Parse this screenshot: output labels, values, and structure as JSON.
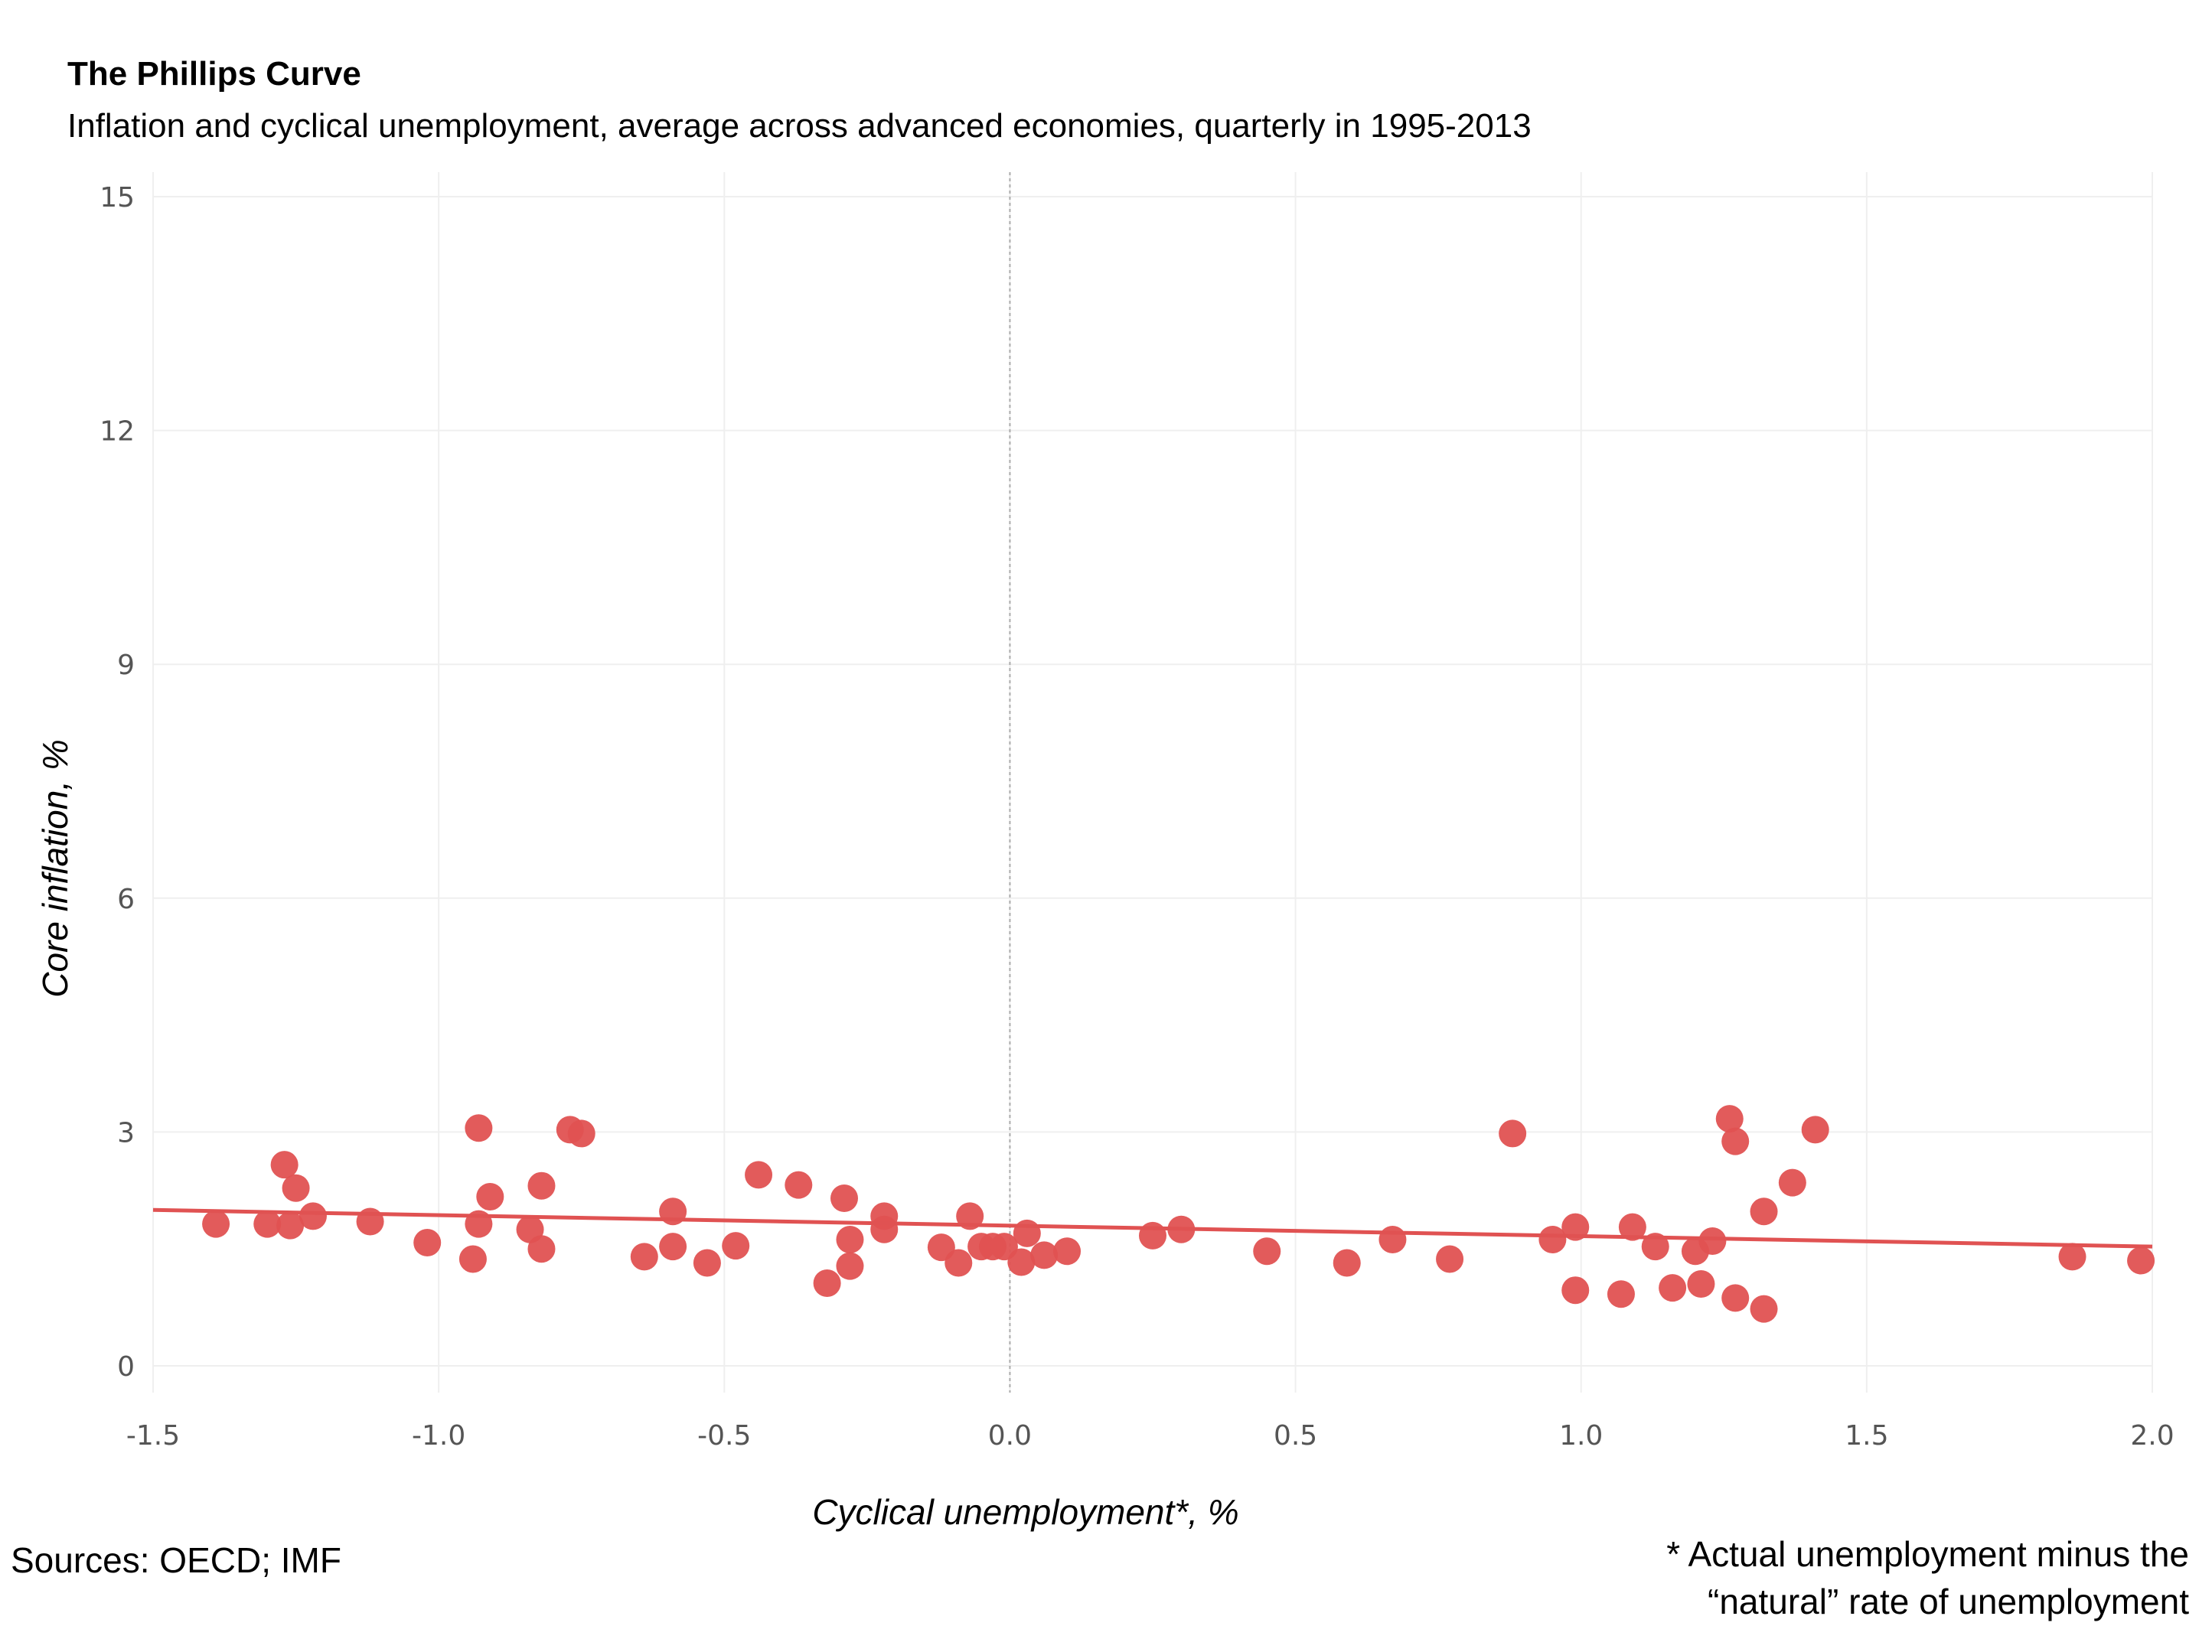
{
  "chart_data": {
    "type": "scatter",
    "title": "The Phillips Curve",
    "subtitle": "Inflation and cyclical unemployment, average across advanced economies, quarterly in 1995-2013",
    "xlabel": "Cyclical unemployment*, %",
    "ylabel": "Core inflation, %",
    "xlim": [
      -1.5,
      2.0
    ],
    "ylim": [
      0,
      15
    ],
    "xticks": [
      "-1.5",
      "-1.0",
      "-0.5",
      "0.0",
      "0.5",
      "1.0",
      "1.5",
      "2.0"
    ],
    "xtick_values": [
      -1.5,
      -1.0,
      -0.5,
      0.0,
      0.5,
      1.0,
      1.5,
      2.0
    ],
    "yticks": [
      "0",
      "3",
      "6",
      "9",
      "12",
      "15"
    ],
    "ytick_values": [
      0,
      3,
      6,
      9,
      12,
      15
    ],
    "grid": true,
    "reference_line_x": 0.0,
    "point_color": "#e05252",
    "trend_color": "#e05252",
    "trend_line": {
      "x": [
        -1.5,
        2.0
      ],
      "y": [
        2.0,
        1.53
      ]
    },
    "points": [
      {
        "x": -1.39,
        "y": 1.82
      },
      {
        "x": -1.3,
        "y": 1.82
      },
      {
        "x": -1.27,
        "y": 2.58
      },
      {
        "x": -1.26,
        "y": 1.8
      },
      {
        "x": -1.25,
        "y": 2.28
      },
      {
        "x": -1.22,
        "y": 1.92
      },
      {
        "x": -1.12,
        "y": 1.85
      },
      {
        "x": -1.02,
        "y": 1.58
      },
      {
        "x": -0.94,
        "y": 1.37
      },
      {
        "x": -0.93,
        "y": 3.05
      },
      {
        "x": -0.93,
        "y": 1.82
      },
      {
        "x": -0.91,
        "y": 2.17
      },
      {
        "x": -0.84,
        "y": 1.75
      },
      {
        "x": -0.82,
        "y": 2.31
      },
      {
        "x": -0.82,
        "y": 1.5
      },
      {
        "x": -0.77,
        "y": 3.03
      },
      {
        "x": -0.75,
        "y": 2.98
      },
      {
        "x": -0.64,
        "y": 1.4
      },
      {
        "x": -0.59,
        "y": 1.98
      },
      {
        "x": -0.59,
        "y": 1.53
      },
      {
        "x": -0.53,
        "y": 1.32
      },
      {
        "x": -0.48,
        "y": 1.54
      },
      {
        "x": -0.44,
        "y": 2.45
      },
      {
        "x": -0.37,
        "y": 2.32
      },
      {
        "x": -0.32,
        "y": 1.06
      },
      {
        "x": -0.29,
        "y": 2.15
      },
      {
        "x": -0.28,
        "y": 1.62
      },
      {
        "x": -0.28,
        "y": 1.28
      },
      {
        "x": -0.22,
        "y": 1.92
      },
      {
        "x": -0.22,
        "y": 1.75
      },
      {
        "x": -0.12,
        "y": 1.52
      },
      {
        "x": -0.09,
        "y": 1.32
      },
      {
        "x": -0.07,
        "y": 1.92
      },
      {
        "x": -0.05,
        "y": 1.53
      },
      {
        "x": -0.03,
        "y": 1.53
      },
      {
        "x": -0.01,
        "y": 1.53
      },
      {
        "x": 0.02,
        "y": 1.33
      },
      {
        "x": 0.03,
        "y": 1.7
      },
      {
        "x": 0.06,
        "y": 1.42
      },
      {
        "x": 0.1,
        "y": 1.47
      },
      {
        "x": 0.25,
        "y": 1.67
      },
      {
        "x": 0.3,
        "y": 1.75
      },
      {
        "x": 0.45,
        "y": 1.47
      },
      {
        "x": 0.59,
        "y": 1.32
      },
      {
        "x": 0.67,
        "y": 1.62
      },
      {
        "x": 0.77,
        "y": 1.37
      },
      {
        "x": 0.88,
        "y": 2.98
      },
      {
        "x": 0.95,
        "y": 1.62
      },
      {
        "x": 0.99,
        "y": 1.78
      },
      {
        "x": 0.99,
        "y": 0.97
      },
      {
        "x": 1.07,
        "y": 0.92
      },
      {
        "x": 1.09,
        "y": 1.78
      },
      {
        "x": 1.13,
        "y": 1.53
      },
      {
        "x": 1.16,
        "y": 1.0
      },
      {
        "x": 1.2,
        "y": 1.47
      },
      {
        "x": 1.21,
        "y": 1.05
      },
      {
        "x": 1.23,
        "y": 1.6
      },
      {
        "x": 1.26,
        "y": 3.17
      },
      {
        "x": 1.27,
        "y": 2.88
      },
      {
        "x": 1.27,
        "y": 0.87
      },
      {
        "x": 1.32,
        "y": 0.73
      },
      {
        "x": 1.32,
        "y": 1.98
      },
      {
        "x": 1.37,
        "y": 2.35
      },
      {
        "x": 1.41,
        "y": 3.03
      },
      {
        "x": 1.86,
        "y": 1.4
      },
      {
        "x": 1.98,
        "y": 1.35
      }
    ]
  },
  "notes": {
    "source": "Sources: OECD; IMF",
    "footnote_line1": "* Actual unemployment minus the",
    "footnote_line2": "“natural” rate of unemployment"
  }
}
